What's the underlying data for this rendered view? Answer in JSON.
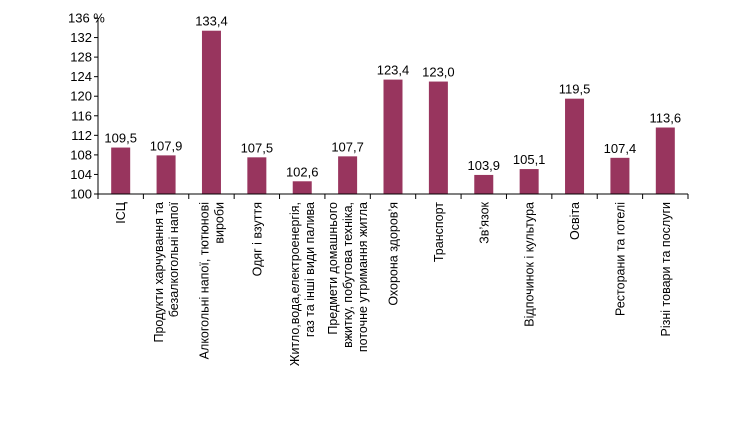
{
  "chart_data": {
    "type": "bar",
    "unit_label": "%",
    "ylim": [
      100,
      136
    ],
    "yticks": [
      100,
      104,
      108,
      112,
      116,
      120,
      124,
      128,
      132,
      136
    ],
    "bar_color": "#98355e",
    "grid": false,
    "categories": [
      [
        "ІСЦ"
      ],
      [
        "Продукти харчування та",
        "безалкогольні напої"
      ],
      [
        "Алкогольні напої, тютюнові",
        "вироби"
      ],
      [
        "Одяг і взуття"
      ],
      [
        "Житло,вода,електроенергія,",
        "газ та  інші види палива"
      ],
      [
        "Предмети домашнього",
        "вжитку, побутова техніка,",
        "поточне утримання житла"
      ],
      [
        "Охорона здоров’я"
      ],
      [
        "Транспорт"
      ],
      [
        "Зв’язок"
      ],
      [
        "Відпочинок і культура"
      ],
      [
        "Освіта"
      ],
      [
        "Ресторани та готелі"
      ],
      [
        "Різні товари та послуги"
      ]
    ],
    "values": [
      109.5,
      107.9,
      133.4,
      107.5,
      102.6,
      107.7,
      123.4,
      123.0,
      103.9,
      105.1,
      119.5,
      107.4,
      113.6
    ],
    "value_labels": [
      "109,5",
      "107,9",
      "133,4",
      "107,5",
      "102,6",
      "107,7",
      "123,4",
      "123,0",
      "103,9",
      "105,1",
      "119,5",
      "107,4",
      "113,6"
    ]
  }
}
